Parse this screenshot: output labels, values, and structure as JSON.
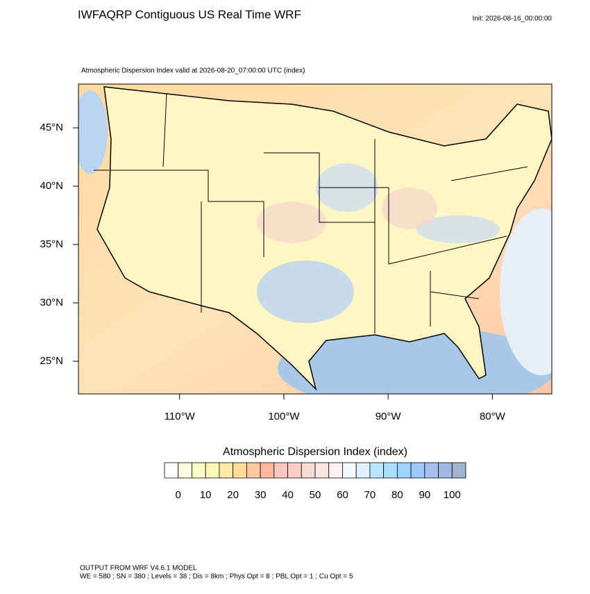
{
  "header": {
    "title": "IWFAQRP Contiguous US Real Time WRF",
    "init": "Init: 2026-08-16_00:00:00"
  },
  "map": {
    "subtitle": "Atmospheric Dispersion Index valid at 2026-08-20_07:00:00 UTC   (index)",
    "lon_range": [
      -119.7,
      -74.3
    ],
    "lat_range": [
      22.2,
      48.75
    ],
    "lon_ticks": [
      {
        "value": -110,
        "label": "110°W"
      },
      {
        "value": -100,
        "label": "100°W"
      },
      {
        "value": -90,
        "label": "90°W"
      },
      {
        "value": -80,
        "label": "80°W"
      }
    ],
    "lat_ticks": [
      {
        "value": 25,
        "label": "25°N"
      },
      {
        "value": 30,
        "label": "30°N"
      },
      {
        "value": 35,
        "label": "35°N"
      },
      {
        "value": 40,
        "label": "40°N"
      },
      {
        "value": 45,
        "label": "45°N"
      }
    ]
  },
  "colorbar": {
    "title": "Atmospheric Dispersion Index  (index)",
    "ticks": [
      0,
      10,
      20,
      30,
      40,
      50,
      60,
      70,
      80,
      90,
      100
    ],
    "colors": [
      "#ffffff",
      "#fffde0",
      "#fffcc8",
      "#fff8b8",
      "#ffeaa8",
      "#ffdc98",
      "#ffc8a0",
      "#ffb8a0",
      "#f8c8c0",
      "#f8d0c8",
      "#f8dcd4",
      "#fae6e0",
      "#fdf2f0",
      "#f4f8ff",
      "#e0f0ff",
      "#b8e8ff",
      "#a8e0ff",
      "#a0d4ff",
      "#a0c8ff",
      "#a8c0f0",
      "#a0b8e0",
      "#a0b4d0"
    ]
  },
  "footer": {
    "line1": "OUTPUT FROM WRF V4.6.1 MODEL",
    "line2": "WE = 580 ; SN = 380 ; Levels = 38 ; Dis = 8km ; Phys Opt = 8 ; PBL Opt = 1 ; Cu Opt = 5"
  }
}
